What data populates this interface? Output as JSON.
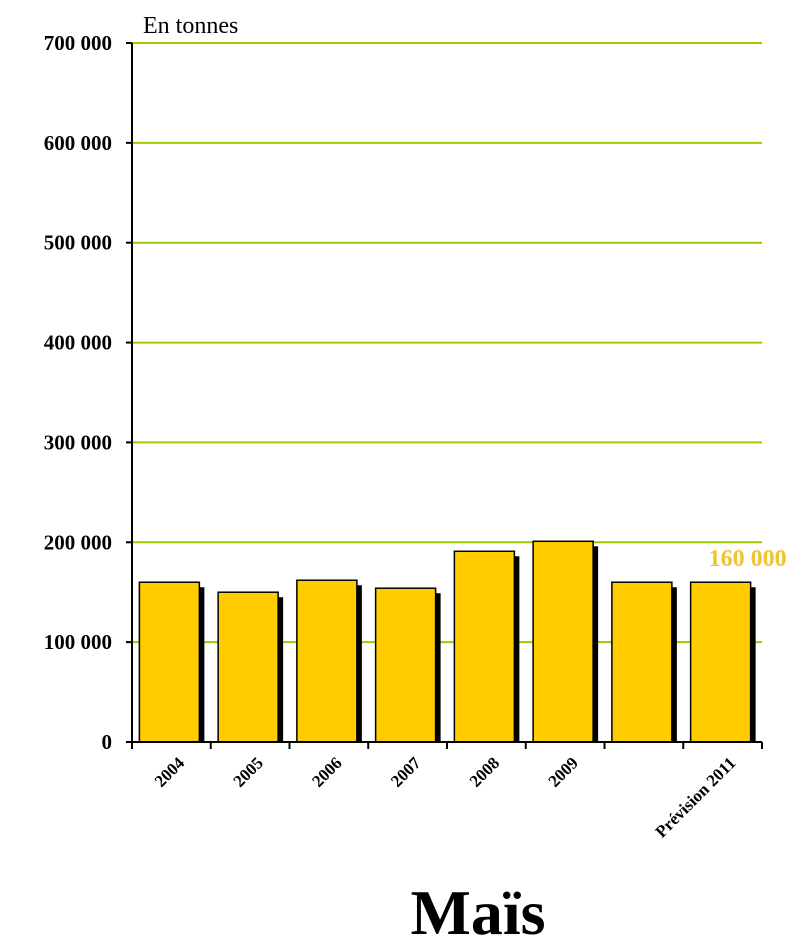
{
  "chart_data": {
    "type": "bar",
    "unit_label": "En tonnes",
    "title": "Maïs",
    "categories": [
      "2004",
      "2005",
      "2006",
      "2007",
      "2008",
      "2009",
      "",
      "Prévision 2011"
    ],
    "values": [
      160000,
      150000,
      162000,
      154000,
      191000,
      201000,
      160000,
      160000
    ],
    "ylim": [
      0,
      700000
    ],
    "yticks": [
      {
        "value": 0,
        "label": "0"
      },
      {
        "value": 100000,
        "label": "100 000"
      },
      {
        "value": 200000,
        "label": "200 000"
      },
      {
        "value": 300000,
        "label": "300 000"
      },
      {
        "value": 400000,
        "label": "400 000"
      },
      {
        "value": 500000,
        "label": "500 000"
      },
      {
        "value": 600000,
        "label": "600 000"
      },
      {
        "value": 700000,
        "label": "700 000"
      }
    ],
    "grid": true,
    "data_labels": [
      {
        "index": 7,
        "text": "160 000"
      }
    ],
    "colors": {
      "bar": "#FFCC00",
      "bar_shadow": "#000000",
      "grid": "#99CC00",
      "data_label": "#F2C230"
    }
  }
}
